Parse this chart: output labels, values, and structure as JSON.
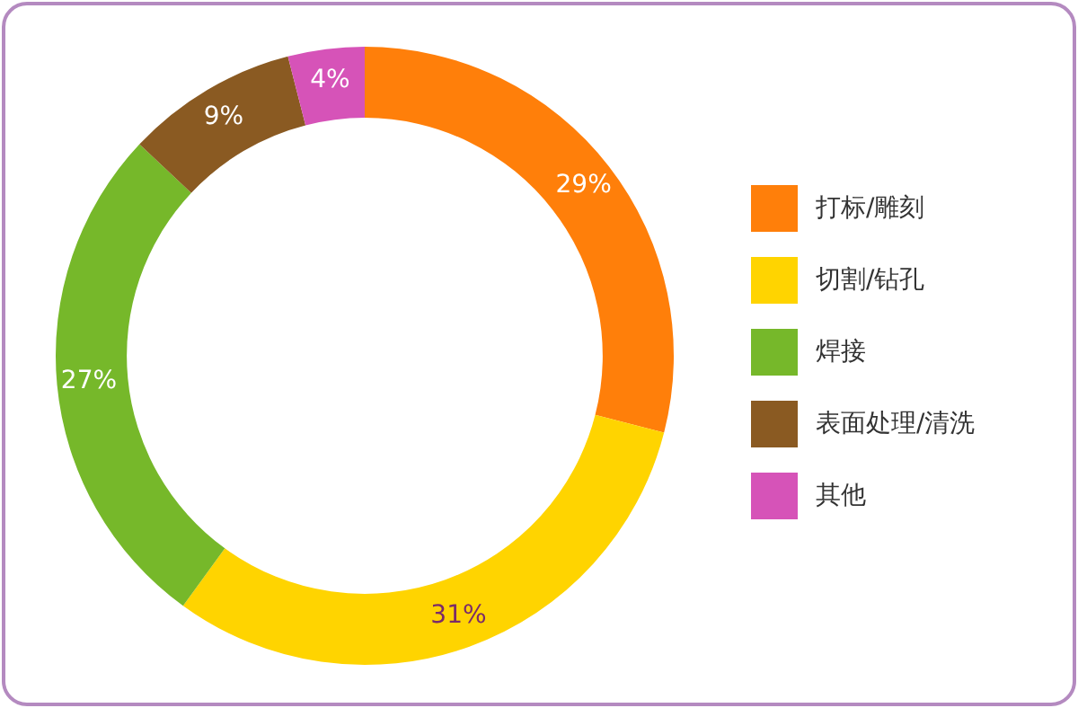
{
  "chart_data": {
    "type": "donut",
    "categories": [
      "打标/雕刻",
      "切割/钻孔",
      "焊接",
      "表面处理/清洗",
      "其他"
    ],
    "values": [
      29,
      31,
      27,
      9,
      4
    ],
    "colors": [
      "#ff7f0a",
      "#ffd400",
      "#76b82a",
      "#8a5a22",
      "#d653b8"
    ],
    "value_labels": [
      "29%",
      "31%",
      "27%",
      "9%",
      "4%"
    ],
    "legend": "right"
  }
}
